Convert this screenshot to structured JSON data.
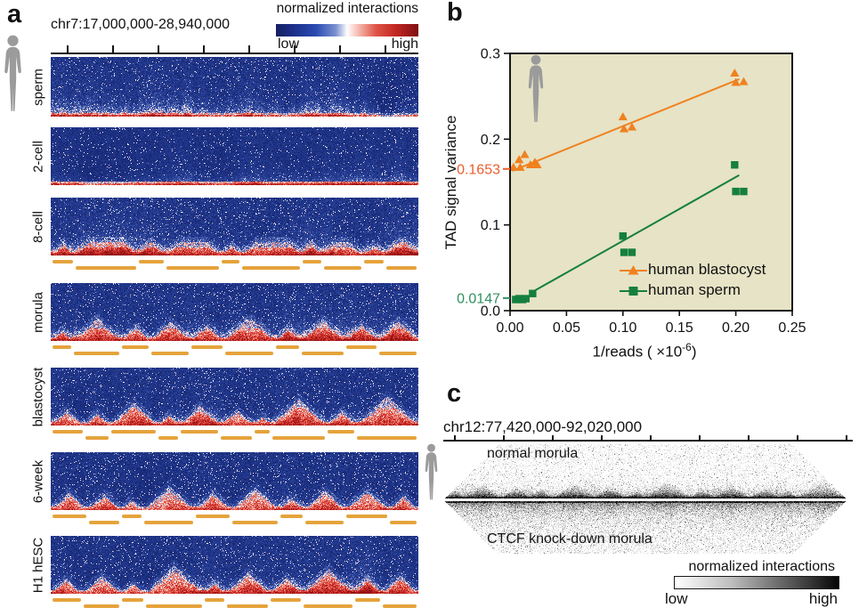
{
  "panel_a": {
    "label": "a",
    "title": "chr7:17,000,000-28,940,000",
    "colorbar": {
      "title": "normalized interactions",
      "low": "low",
      "high": "high"
    },
    "tad_bar_color": "#e5a33c",
    "rows": [
      {
        "label": "sperm",
        "tad_bars": false,
        "domains": null
      },
      {
        "label": "2-cell",
        "tad_bars": false,
        "domains": null
      },
      {
        "label": "8-cell",
        "tad_bars": true,
        "domains": [
          0.065,
          0.17,
          0.077,
          0.15,
          0.056,
          0.163,
          0.058,
          0.11,
          0.06,
          0.091
        ]
      },
      {
        "label": "morula",
        "tad_bars": true,
        "domains": [
          0.06,
          0.13,
          0.08,
          0.11,
          0.09,
          0.14,
          0.07,
          0.12,
          0.09,
          0.11
        ]
      },
      {
        "label": "blastocyst",
        "tad_bars": true,
        "domains": [
          0.09,
          0.07,
          0.13,
          0.06,
          0.11,
          0.09,
          0.05,
          0.15,
          0.08,
          0.17
        ]
      },
      {
        "label": "6-week",
        "tad_bars": true,
        "domains": [
          0.1,
          0.09,
          0.06,
          0.14,
          0.1,
          0.13,
          0.07,
          0.11,
          0.12,
          0.08
        ]
      },
      {
        "label": "H1 hESC",
        "tad_bars": true,
        "domains": [
          0.085,
          0.105,
          0.065,
          0.16,
          0.06,
          0.12,
          0.09,
          0.14,
          0.075,
          0.1
        ]
      }
    ]
  },
  "panel_b": {
    "label": "b",
    "chart_data": {
      "type": "scatter",
      "title": "",
      "xlabel": "1/reads ( ×10-6)",
      "xlabel_parts": {
        "pre": "1/reads ( ×10",
        "sup": "-6",
        "post": ")"
      },
      "ylabel": "TAD signal variance",
      "xlim": [
        0,
        0.25
      ],
      "ylim": [
        0,
        0.3
      ],
      "grid": false,
      "background": "#e6e3c6",
      "legend_position": "bottom-right",
      "xticks": {
        "values": [
          0,
          0.05,
          0.1,
          0.15,
          0.2,
          0.25
        ],
        "labels": [
          "0.00",
          "0.05",
          "0.10",
          "0.15",
          "0.20",
          "0.25"
        ]
      },
      "yticks": {
        "values": [
          0,
          0.1,
          0.2,
          0.3
        ],
        "labels": [
          "0.0",
          "0.1",
          "0.2",
          "0.3"
        ]
      },
      "annotations": [
        {
          "text": "0.1653",
          "value": 0.1653,
          "color": "#e85f2d"
        },
        {
          "text": "0.0147",
          "value": 0.0147,
          "color": "#2f9060"
        }
      ],
      "series": [
        {
          "name": "human blastocyst",
          "marker": "triangle",
          "color": "#f0811f",
          "points": [
            [
              0.003,
              0.167
            ],
            [
              0.008,
              0.176
            ],
            [
              0.009,
              0.167
            ],
            [
              0.013,
              0.182
            ],
            [
              0.018,
              0.17
            ],
            [
              0.022,
              0.173
            ],
            [
              0.024,
              0.17
            ],
            [
              0.1,
              0.226
            ],
            [
              0.101,
              0.212
            ],
            [
              0.108,
              0.214
            ],
            [
              0.199,
              0.277
            ],
            [
              0.2,
              0.266
            ],
            [
              0.207,
              0.267
            ]
          ],
          "trend": [
            [
              0.002,
              0.163
            ],
            [
              0.203,
              0.27
            ]
          ]
        },
        {
          "name": "human sperm",
          "marker": "square",
          "color": "#157f3f",
          "points": [
            [
              0.005,
              0.013
            ],
            [
              0.008,
              0.014
            ],
            [
              0.011,
              0.013
            ],
            [
              0.014,
              0.014
            ],
            [
              0.02,
              0.02
            ],
            [
              0.1,
              0.087
            ],
            [
              0.101,
              0.068
            ],
            [
              0.108,
              0.068
            ],
            [
              0.199,
              0.17
            ],
            [
              0.2,
              0.139
            ],
            [
              0.207,
              0.139
            ]
          ],
          "trend": [
            [
              0.02,
              0.022
            ],
            [
              0.203,
              0.158
            ]
          ]
        }
      ]
    }
  },
  "panel_c": {
    "label": "c",
    "title": "chr12:77,420,000-92,020,000",
    "maps": [
      {
        "label": "normal morula"
      },
      {
        "label": "CTCF knock-down morula"
      }
    ],
    "domains": [
      0.05,
      0.09,
      0.07,
      0.06,
      0.1,
      0.08,
      0.05,
      0.11,
      0.06,
      0.09,
      0.07,
      0.05,
      0.12
    ],
    "colorbar": {
      "title": "normalized interactions",
      "low": "low",
      "high": "high"
    }
  }
}
